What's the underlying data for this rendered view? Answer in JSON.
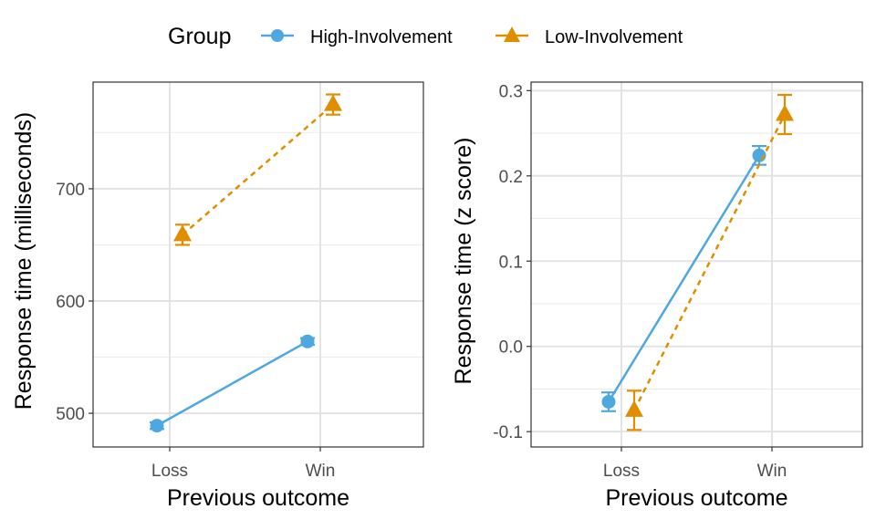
{
  "legend": {
    "title": "Group",
    "items": [
      {
        "label": "High-Involvement",
        "color": "#4EA8E0",
        "shape": "circle",
        "line": "solid"
      },
      {
        "label": "Low-Involvement",
        "color": "#E08E00",
        "shape": "triangle",
        "line": "dashed"
      }
    ]
  },
  "chart_data": [
    {
      "type": "line",
      "xlabel": "Previous outcome",
      "ylabel": "Response time (milliseconds)",
      "categories": [
        "Loss",
        "Win"
      ],
      "ylim": [
        470,
        795
      ],
      "yticks": [
        500,
        600,
        700
      ],
      "ytick_labels": [
        "500",
        "600",
        "700"
      ],
      "grid": true,
      "legend_position": "top",
      "series": [
        {
          "name": "High-Involvement",
          "values": [
            489,
            564
          ],
          "errors": [
            3,
            3
          ]
        },
        {
          "name": "Low-Involvement",
          "values": [
            659,
            775
          ],
          "errors": [
            9,
            9
          ]
        }
      ]
    },
    {
      "type": "line",
      "xlabel": "Previous outcome",
      "ylabel": "Response time (z score)",
      "categories": [
        "Loss",
        "Win"
      ],
      "ylim": [
        -0.118,
        0.31
      ],
      "yticks": [
        -0.1,
        0.0,
        0.1,
        0.2,
        0.3
      ],
      "ytick_labels": [
        "-0.1",
        "0.0",
        "0.1",
        "0.2",
        "0.3"
      ],
      "grid": true,
      "legend_position": "top",
      "series": [
        {
          "name": "High-Involvement",
          "values": [
            -0.065,
            0.224
          ],
          "errors": [
            0.011,
            0.011
          ]
        },
        {
          "name": "Low-Involvement",
          "values": [
            -0.075,
            0.272
          ],
          "errors": [
            0.023,
            0.023
          ]
        }
      ]
    }
  ]
}
